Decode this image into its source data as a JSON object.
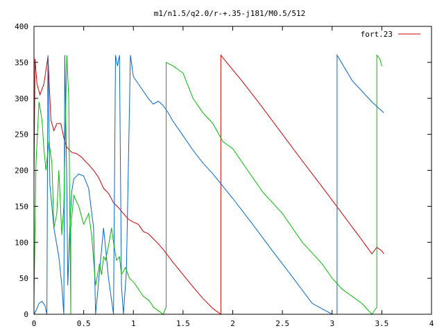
{
  "chart_data": {
    "type": "line",
    "title": "m1/n1.5/q2.0/r-+.35-j181/M0.5/512",
    "xlabel": "",
    "ylabel": "",
    "xlim": [
      0,
      4
    ],
    "ylim": [
      0,
      400
    ],
    "x_ticks": [
      0,
      0.5,
      1,
      1.5,
      2,
      2.5,
      3,
      3.5,
      4
    ],
    "x_tick_labels": [
      "0",
      "0.5",
      "1",
      "1.5",
      "2",
      "2.5",
      "3",
      "3.5",
      "4"
    ],
    "y_ticks": [
      0,
      50,
      100,
      150,
      200,
      250,
      300,
      350,
      400
    ],
    "y_tick_labels": [
      "0",
      "50",
      "100",
      "150",
      "200",
      "250",
      "300",
      "350",
      "400"
    ],
    "grid": false,
    "legend": {
      "placement": "top-right",
      "entries": [
        "fort.23"
      ]
    },
    "series": [
      {
        "name": "fort.23",
        "color": "#cc0000",
        "x": [
          0.0,
          0.01,
          0.03,
          0.06,
          0.1,
          0.14,
          0.17,
          0.2,
          0.23,
          0.27,
          0.3,
          0.33,
          0.38,
          0.43,
          0.48,
          0.52,
          0.55,
          0.6,
          0.65,
          0.7,
          0.75,
          0.8,
          0.85,
          0.9,
          0.95,
          1.0,
          1.05,
          1.1,
          1.15,
          1.2,
          1.25,
          1.3,
          1.4,
          1.5,
          1.6,
          1.7,
          1.8,
          1.88,
          1.88,
          1.95,
          2.1,
          2.3,
          2.5,
          2.7,
          2.9,
          3.1,
          3.3,
          3.4,
          3.45,
          3.5,
          3.52
        ],
        "y": [
          180,
          355,
          320,
          305,
          320,
          358,
          270,
          255,
          265,
          265,
          245,
          232,
          225,
          223,
          218,
          212,
          208,
          200,
          190,
          175,
          168,
          155,
          148,
          140,
          132,
          128,
          125,
          115,
          112,
          105,
          98,
          90,
          72,
          55,
          38,
          22,
          8,
          0,
          360,
          348,
          323,
          287,
          250,
          213,
          177,
          140,
          103,
          84,
          93,
          88,
          84
        ]
      },
      {
        "color": "#0066cc",
        "x": [
          0.0,
          0.02,
          0.05,
          0.08,
          0.11,
          0.13,
          0.14,
          0.16,
          0.2,
          0.25,
          0.28,
          0.3,
          0.31,
          0.33,
          0.34,
          0.36,
          0.38,
          0.4,
          0.45,
          0.5,
          0.55,
          0.6,
          0.62,
          0.66,
          0.7,
          0.75,
          0.8,
          0.82,
          0.84,
          0.86,
          0.88,
          0.9,
          0.93,
          0.97,
          1.0,
          1.05,
          1.1,
          1.15,
          1.2,
          1.25,
          1.3,
          1.35,
          1.4,
          1.5,
          1.6,
          1.7,
          1.8,
          1.9,
          2.0,
          2.2,
          2.4,
          2.6,
          2.8,
          3.0,
          3.05,
          3.05,
          3.2,
          3.4,
          3.52
        ],
        "y": [
          0,
          5,
          15,
          18,
          12,
          0,
          360,
          180,
          120,
          80,
          40,
          0,
          360,
          180,
          40,
          120,
          170,
          188,
          195,
          192,
          175,
          120,
          0,
          60,
          120,
          50,
          0,
          360,
          345,
          360,
          40,
          0,
          60,
          360,
          330,
          320,
          310,
          300,
          292,
          296,
          290,
          280,
          268,
          248,
          228,
          210,
          195,
          178,
          161,
          125,
          88,
          52,
          15,
          0,
          0,
          360,
          325,
          295,
          280
        ]
      },
      {
        "color": "#00bb00",
        "x": [
          0.0,
          0.02,
          0.05,
          0.08,
          0.1,
          0.12,
          0.15,
          0.18,
          0.2,
          0.23,
          0.25,
          0.28,
          0.3,
          0.33,
          0.35,
          0.37,
          0.37,
          0.4,
          0.45,
          0.5,
          0.55,
          0.58,
          0.62,
          0.66,
          0.68,
          0.7,
          0.72,
          0.75,
          0.78,
          0.8,
          0.83,
          0.86,
          0.88,
          0.92,
          0.96,
          1.0,
          1.05,
          1.1,
          1.15,
          1.18,
          1.2,
          1.25,
          1.3,
          1.33,
          1.33,
          1.4,
          1.5,
          1.6,
          1.7,
          1.8,
          1.9,
          2.0,
          2.1,
          2.2,
          2.3,
          2.4,
          2.5,
          2.6,
          2.7,
          2.8,
          2.9,
          3.0,
          3.1,
          3.2,
          3.3,
          3.4,
          3.45,
          3.45,
          3.48,
          3.5
        ],
        "y": [
          20,
          210,
          295,
          270,
          230,
          200,
          240,
          210,
          120,
          140,
          200,
          110,
          150,
          360,
          300,
          0,
          120,
          165,
          150,
          125,
          140,
          110,
          40,
          70,
          55,
          80,
          75,
          95,
          120,
          100,
          75,
          80,
          55,
          65,
          50,
          45,
          35,
          25,
          20,
          15,
          10,
          5,
          0,
          10,
          350,
          345,
          335,
          300,
          280,
          265,
          240,
          230,
          210,
          190,
          170,
          155,
          140,
          120,
          100,
          85,
          70,
          50,
          35,
          25,
          15,
          0,
          10,
          360,
          355,
          345
        ]
      }
    ]
  }
}
